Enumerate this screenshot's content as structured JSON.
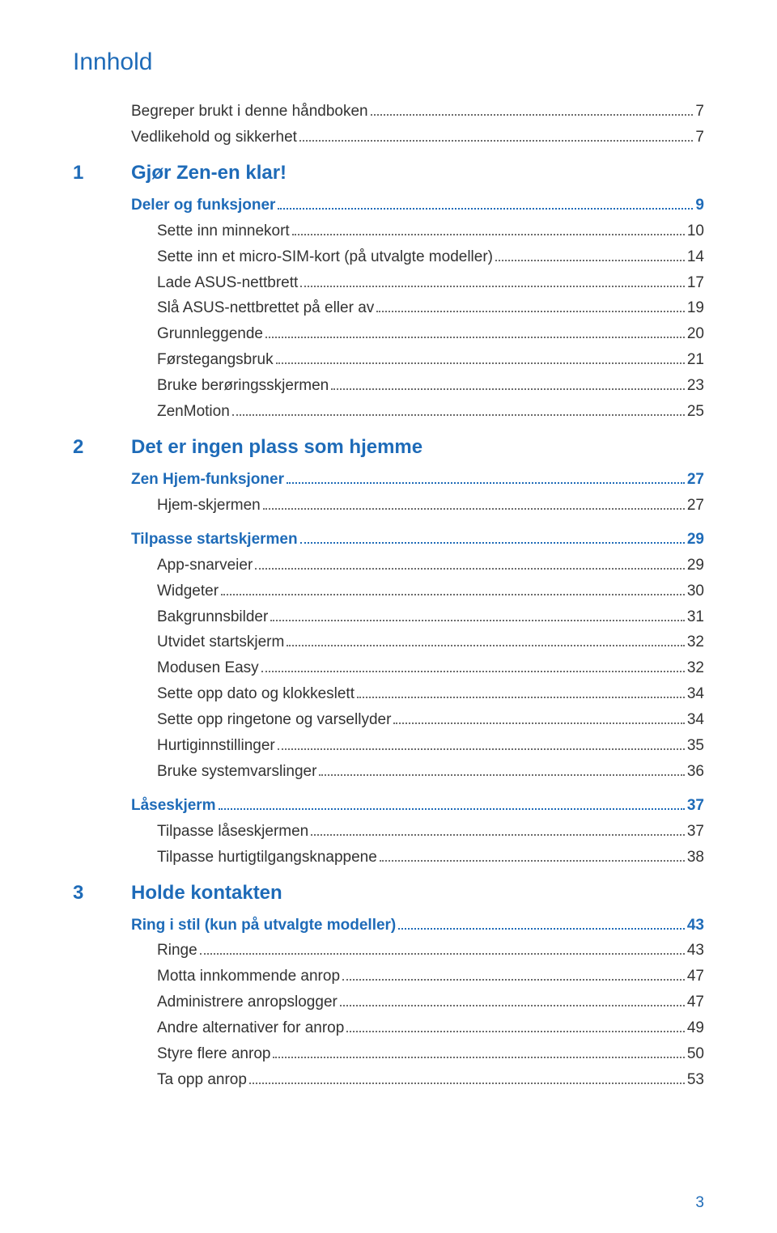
{
  "colors": {
    "brand": "#1e6bb8",
    "text": "#333333",
    "dots": "#6b6b6b",
    "background": "#ffffff"
  },
  "typography": {
    "title_fontsize": 30,
    "chapter_fontsize": 24,
    "entry_fontsize": 19,
    "font_family": "Segoe UI"
  },
  "title": "Innhold",
  "page_number": "3",
  "intro_entries": [
    {
      "label": "Begreper brukt i denne håndboken",
      "page": "7"
    },
    {
      "label": "Vedlikehold og sikkerhet",
      "page": "7"
    }
  ],
  "chapters": [
    {
      "num": "1",
      "label": "Gjør Zen-en klar!",
      "sections": [
        {
          "label": "Deler og funksjoner",
          "page": "9",
          "children": [
            {
              "label": "Sette inn minnekort",
              "page": "10"
            },
            {
              "label": "Sette inn et micro-SIM-kort (på utvalgte modeller)",
              "page": "14"
            },
            {
              "label": "Lade ASUS-nettbrett",
              "page": "17"
            },
            {
              "label": "Slå ASUS-nettbrettet på eller av",
              "page": "19"
            },
            {
              "label": "Grunnleggende",
              "page": "20"
            },
            {
              "label": "Førstegangsbruk",
              "page": "21"
            },
            {
              "label": "Bruke berøringsskjermen",
              "page": "23"
            },
            {
              "label": "ZenMotion",
              "page": "25"
            }
          ]
        }
      ]
    },
    {
      "num": "2",
      "label": "Det er ingen plass som hjemme",
      "sections": [
        {
          "label": "Zen Hjem-funksjoner",
          "page": "27",
          "children": [
            {
              "label": "Hjem-skjermen",
              "page": "27"
            }
          ]
        },
        {
          "label": "Tilpasse startskjermen",
          "page": "29",
          "children": [
            {
              "label": "App-snarveier",
              "page": "29"
            },
            {
              "label": "Widgeter",
              "page": "30"
            },
            {
              "label": "Bakgrunnsbilder",
              "page": "31"
            },
            {
              "label": "Utvidet startskjerm",
              "page": "32"
            },
            {
              "label": "Modusen Easy",
              "page": "32"
            },
            {
              "label": "Sette opp dato og klokkeslett",
              "page": "34"
            },
            {
              "label": "Sette opp ringetone og varsellyder",
              "page": "34"
            },
            {
              "label": "Hurtiginnstillinger",
              "page": "35"
            },
            {
              "label": "Bruke systemvarslinger",
              "page": "36"
            }
          ]
        },
        {
          "label": "Låseskjerm",
          "page": "37",
          "children": [
            {
              "label": "Tilpasse låseskjermen",
              "page": "37"
            },
            {
              "label": "Tilpasse hurtigtilgangsknappene",
              "page": "38"
            }
          ]
        }
      ]
    },
    {
      "num": "3",
      "label": "Holde kontakten",
      "sections": [
        {
          "label": "Ring i stil (kun på utvalgte modeller)",
          "page": "43",
          "children": [
            {
              "label": "Ringe",
              "page": "43"
            },
            {
              "label": "Motta innkommende anrop",
              "page": "47"
            },
            {
              "label": "Administrere anropslogger",
              "page": "47"
            },
            {
              "label": "Andre alternativer for anrop",
              "page": "49"
            },
            {
              "label": "Styre flere anrop",
              "page": "50"
            },
            {
              "label": "Ta opp anrop",
              "page": "53"
            }
          ]
        }
      ]
    }
  ]
}
